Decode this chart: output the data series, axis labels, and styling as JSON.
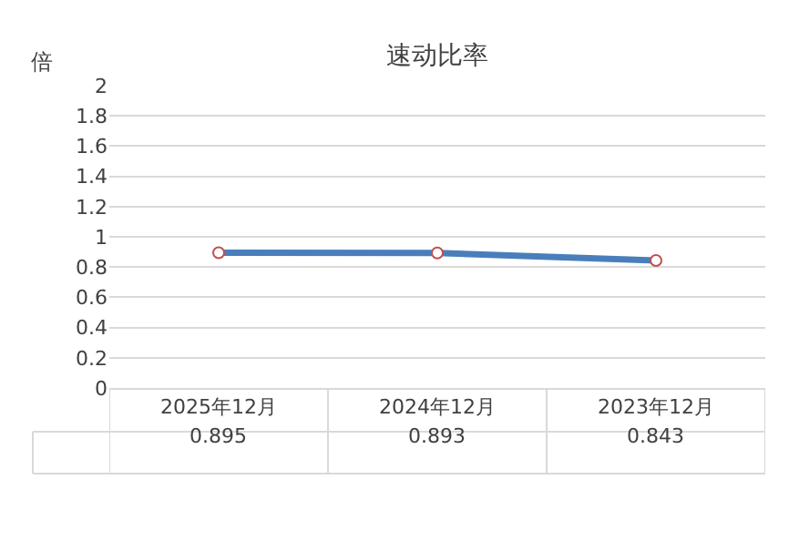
{
  "chart_data": {
    "type": "line",
    "title": "速动比率",
    "ylabel": "倍",
    "categories": [
      "2025年12月",
      "2024年12月",
      "2023年12月"
    ],
    "series": [
      {
        "color": "#4a7ebb",
        "values": [
          0.895,
          0.893,
          0.843
        ]
      }
    ],
    "ylim": [
      0,
      2
    ],
    "yticks": [
      0,
      0.2,
      0.4,
      0.6,
      0.8,
      1,
      1.2,
      1.4,
      1.6,
      1.8,
      2
    ],
    "grid": "y",
    "marker": "circle",
    "line_style": "solid",
    "legend": false,
    "data_labels": true
  }
}
